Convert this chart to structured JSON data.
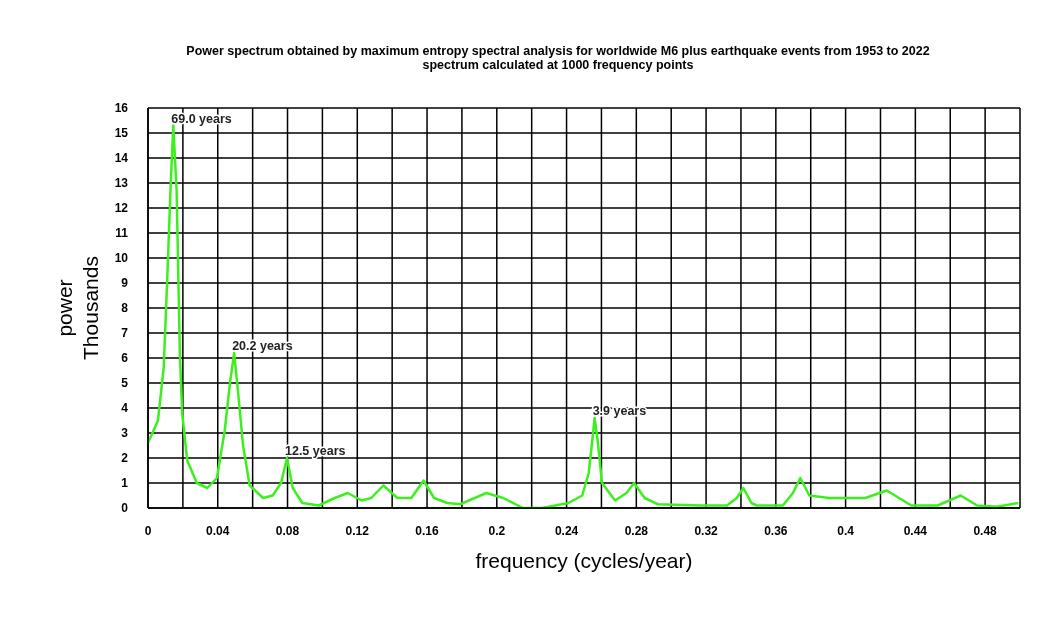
{
  "chart_data": {
    "type": "line",
    "title": "Power spectrum obtained by maximum entropy spectral analysis for worldwide M6 plus earthquake events from 1953 to 2022",
    "subtitle": "spectrum calculated at 1000 frequency points",
    "xlabel": "frequency (cycles/year)",
    "ylabel": "power\nThousands",
    "series": [
      {
        "color": "#3cf01e",
        "x": [
          0,
          0.0057,
          0.009,
          0.011,
          0.013,
          0.0145,
          0.0164,
          0.0183,
          0.0196,
          0.0225,
          0.028,
          0.034,
          0.0395,
          0.044,
          0.047,
          0.0494,
          0.0517,
          0.0545,
          0.0583,
          0.066,
          0.0715,
          0.0763,
          0.0797,
          0.083,
          0.0885,
          0.098,
          0.107,
          0.1146,
          0.1225,
          0.128,
          0.135,
          0.143,
          0.151,
          0.158,
          0.164,
          0.1716,
          0.179,
          0.194,
          0.2037,
          0.215,
          0.226,
          0.241,
          0.249,
          0.2527,
          0.2546,
          0.2561,
          0.258,
          0.2603,
          0.2678,
          0.2744,
          0.2787,
          0.2848,
          0.2924,
          0.317,
          0.332,
          0.3376,
          0.3414,
          0.346,
          0.349,
          0.364,
          0.3698,
          0.374,
          0.3792,
          0.3905,
          0.398,
          0.4113,
          0.4236,
          0.4377,
          0.4528,
          0.466,
          0.4754,
          0.4868,
          0.499
        ],
        "values": [
          2.6,
          3.5,
          5.6,
          9.1,
          12.9,
          15.3,
          12.7,
          6.1,
          3.8,
          1.9,
          1.0,
          0.8,
          1.2,
          3.1,
          5.0,
          6.2,
          4.6,
          2.5,
          0.9,
          0.4,
          0.5,
          1.0,
          2.0,
          0.8,
          0.2,
          0.1,
          0.4,
          0.6,
          0.3,
          0.4,
          0.9,
          0.4,
          0.4,
          1.1,
          0.4,
          0.2,
          0.15,
          0.6,
          0.4,
          0.0,
          0.0,
          0.2,
          0.5,
          1.4,
          2.6,
          3.6,
          2.6,
          1.0,
          0.3,
          0.6,
          1.0,
          0.4,
          0.15,
          0.1,
          0.1,
          0.4,
          0.8,
          0.2,
          0.1,
          0.1,
          0.6,
          1.2,
          0.5,
          0.4,
          0.4,
          0.4,
          0.7,
          0.1,
          0.1,
          0.5,
          0.1,
          0.05,
          0.2
        ]
      }
    ],
    "xlim": [
      0,
      0.5
    ],
    "xticks": [
      0,
      {
        "value": 0.02,
        "label": null
      },
      0.04,
      {
        "value": 0.06,
        "label": null
      },
      0.08,
      {
        "value": 0.1,
        "label": null
      },
      0.12,
      {
        "value": 0.14,
        "label": null
      },
      0.16,
      {
        "value": 0.18,
        "label": null
      },
      0.2,
      {
        "value": 0.22,
        "label": null
      },
      0.24,
      {
        "value": 0.26,
        "label": null
      },
      0.28,
      {
        "value": 0.3,
        "label": null
      },
      0.32,
      {
        "value": 0.34,
        "label": null
      },
      0.36,
      {
        "value": 0.38,
        "label": null
      },
      0.4,
      {
        "value": 0.42,
        "label": null
      },
      0.44,
      {
        "value": 0.46,
        "label": null
      },
      0.48,
      {
        "value": 0.5,
        "label": null
      }
    ],
    "ylim": [
      0,
      16
    ],
    "yticks": [
      0,
      1,
      2,
      3,
      4,
      5,
      6,
      7,
      8,
      9,
      10,
      11,
      12,
      13,
      14,
      15,
      16
    ],
    "grid": true,
    "legend": false,
    "marker": "none",
    "line_style": "solid",
    "annotations": [
      {
        "text": "69.0 years",
        "x": 0.0145,
        "y": 15.3
      },
      {
        "text": "20.2 years",
        "x": 0.0494,
        "y": 6.2
      },
      {
        "text": "12.5 years",
        "x": 0.0797,
        "y": 2.0
      },
      {
        "text": "3.9 years",
        "x": 0.2561,
        "y": 3.6
      }
    ]
  }
}
